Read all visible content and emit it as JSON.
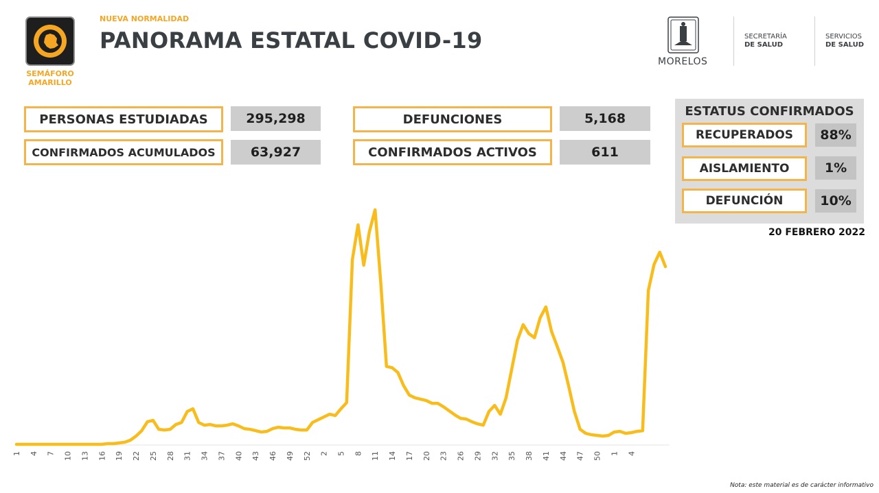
{
  "header": {
    "kicker": "NUEVA NORMALIDAD",
    "title": "PANORAMA ESTATAL COVID-19",
    "semaforo_line1": "SEMÁFORO",
    "semaforo_line2": "AMARILLO",
    "state_name": "MORELOS",
    "secretaria_line1": "SECRETARÍA",
    "secretaria_line2": "DE SALUD",
    "servicios_line1": "SERVICIOS",
    "servicios_line2": "DE SALUD"
  },
  "stats": {
    "personas_label": "PERSONAS ESTUDIADAS",
    "personas_value": "295,298",
    "confirmados_label": "CONFIRMADOS ACUMULADOS",
    "confirmados_value": "63,927",
    "defunciones_label": "DEFUNCIONES",
    "defunciones_value": "5,168",
    "activos_label": "CONFIRMADOS ACTIVOS",
    "activos_value": "611"
  },
  "status": {
    "title": "ESTATUS CONFIRMADOS",
    "recuperados_label": "RECUPERADOS",
    "recuperados_value": "88%",
    "aislamiento_label": "AISLAMIENTO",
    "aislamiento_value": "1%",
    "defuncion_label": "DEFUNCIÓN",
    "defuncion_value": "10%"
  },
  "date": "20 FEBRERO 2022",
  "note": "Nota: este material es de carácter informativo",
  "colors": {
    "accent": "#f5a623",
    "line": "#f8bd1c",
    "value_bg": "#cdcdcd"
  },
  "chart_data": {
    "type": "line",
    "x_tick_labels": [
      "1",
      "4",
      "7",
      "10",
      "13",
      "16",
      "19",
      "22",
      "25",
      "28",
      "31",
      "34",
      "37",
      "40",
      "43",
      "46",
      "49",
      "52",
      "2",
      "5",
      "8",
      "11",
      "14",
      "17",
      "20",
      "23",
      "26",
      "29",
      "32",
      "35",
      "38",
      "41",
      "44",
      "47",
      "50",
      "1",
      "4"
    ],
    "y_axis_visible": false,
    "grid": false,
    "series": [
      {
        "values": [
          0,
          0,
          0,
          0,
          0,
          0,
          0,
          0,
          0,
          0,
          0,
          0,
          0,
          0,
          0,
          0,
          1,
          1,
          2,
          3,
          6,
          12,
          20,
          33,
          35,
          22,
          21,
          22,
          29,
          32,
          48,
          52,
          32,
          28,
          29,
          27,
          27,
          28,
          30,
          27,
          23,
          22,
          20,
          18,
          19,
          23,
          25,
          24,
          24,
          22,
          21,
          21,
          32,
          36,
          40,
          44,
          42,
          52,
          61,
          270,
          321,
          262,
          311,
          343,
          236,
          114,
          112,
          105,
          86,
          72,
          68,
          66,
          64,
          60,
          60,
          55,
          49,
          43,
          38,
          37,
          33,
          30,
          28,
          48,
          57,
          44,
          68,
          110,
          152,
          175,
          162,
          156,
          185,
          201,
          165,
          143,
          120,
          85,
          48,
          22,
          16,
          14,
          13,
          12,
          13,
          18,
          19,
          16,
          17,
          19,
          20,
          225,
          263,
          281,
          260
        ],
        "color": "#f8bd1c"
      }
    ]
  }
}
